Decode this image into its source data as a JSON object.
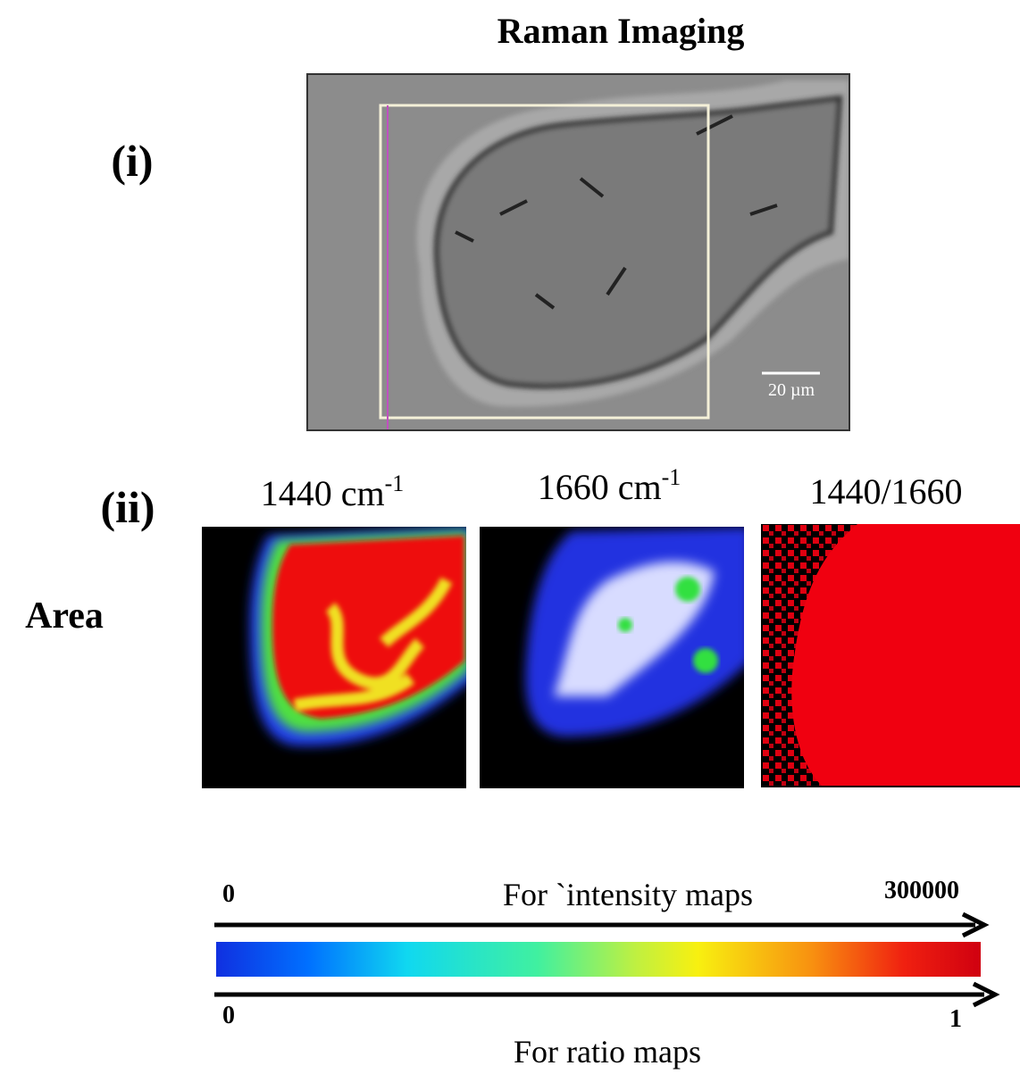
{
  "header": {
    "title": "Raman Imaging"
  },
  "panel_i": {
    "label": "(i)",
    "scale_bar": "20 µm"
  },
  "panel_ii": {
    "label": "(ii)",
    "row_label": "Area",
    "maps": [
      {
        "text": "1440 cm",
        "sup": "-1"
      },
      {
        "text": "1660 cm",
        "sup": "-1"
      },
      {
        "text": "1440/1660"
      }
    ]
  },
  "colorbar": {
    "intensity": {
      "min": 0,
      "caption": "For `intensity  maps",
      "max": 300000
    },
    "ratio": {
      "min": 0,
      "max": 1,
      "caption": "For ratio maps"
    }
  }
}
